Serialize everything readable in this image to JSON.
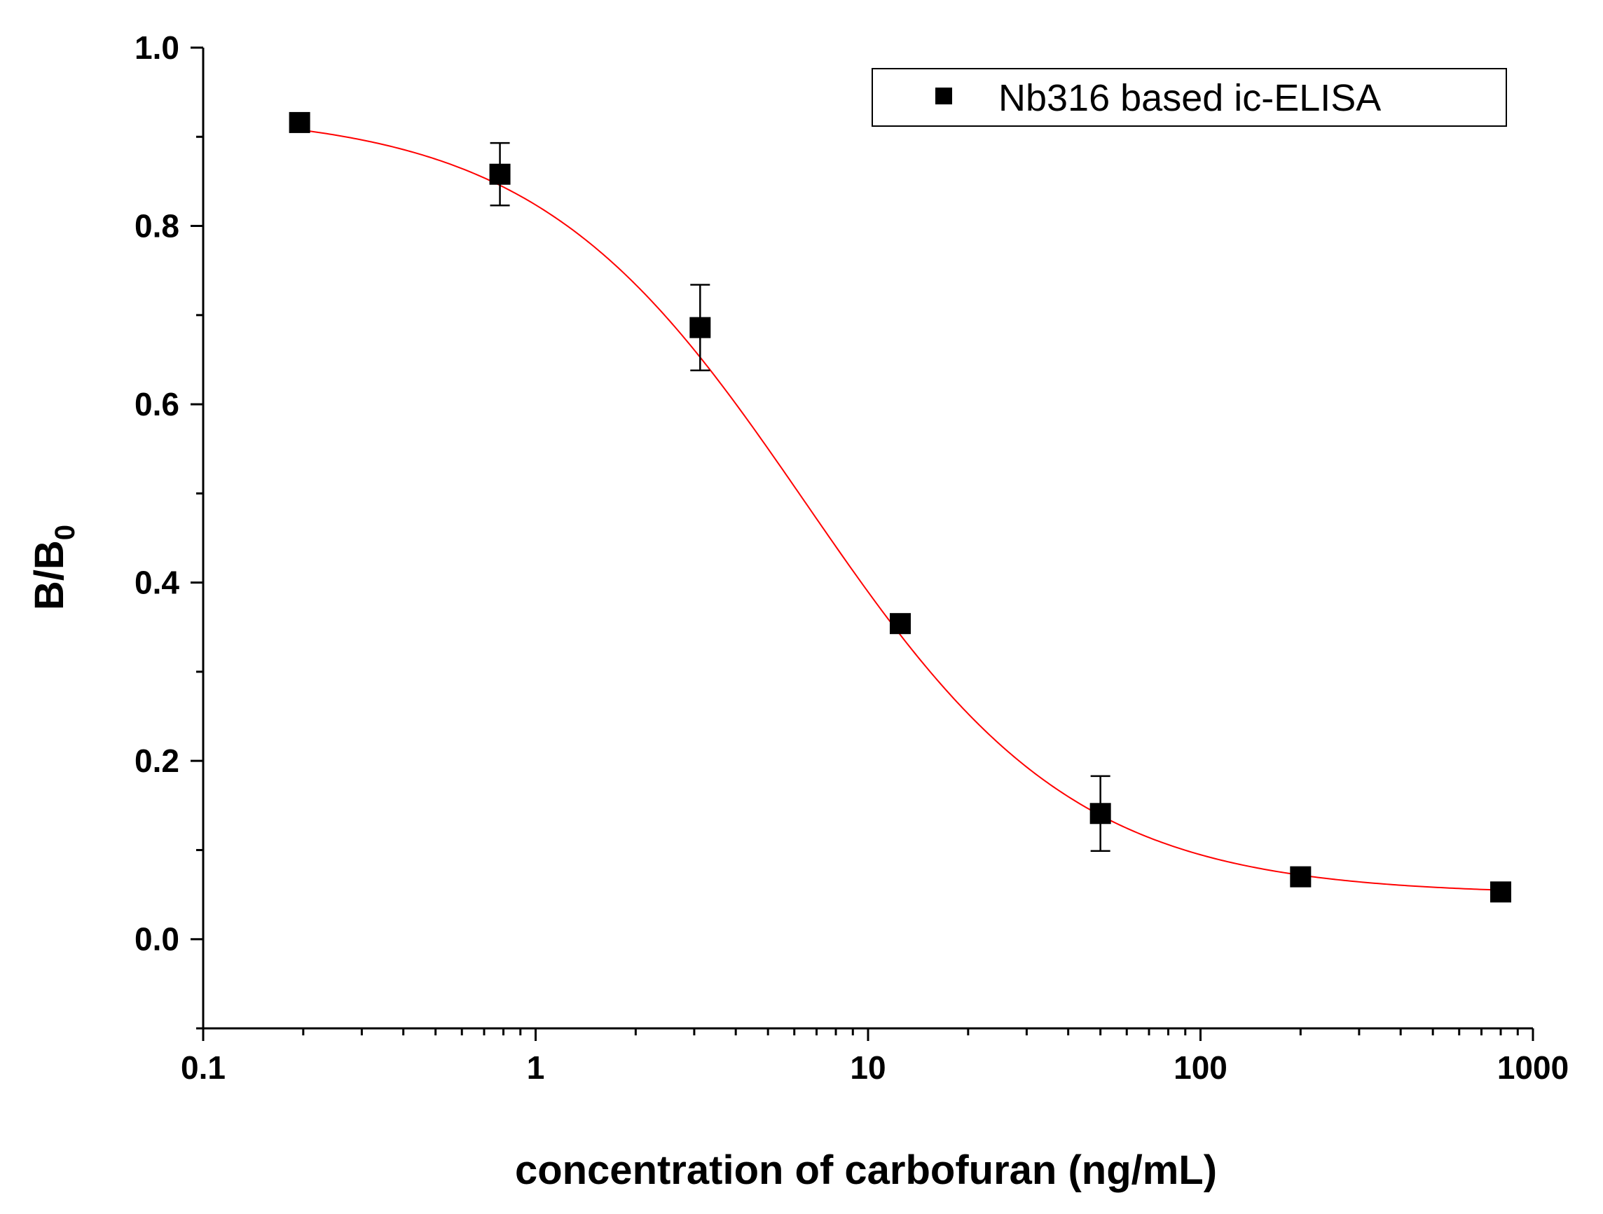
{
  "chart_data": {
    "type": "scatter",
    "title": "",
    "xlabel": "concentration of carbofuran (ng/mL)",
    "ylabel": "B/B",
    "ylabel_subscript": "0",
    "xscale": "log",
    "xlim": [
      0.1,
      1000
    ],
    "ylim": [
      -0.1,
      1.0
    ],
    "x_ticks": [
      0.1,
      1,
      10,
      100,
      1000
    ],
    "x_tick_labels": [
      "0.1",
      "1",
      "10",
      "100",
      "1000"
    ],
    "y_ticks": [
      0.0,
      0.2,
      0.4,
      0.6,
      0.8,
      1.0
    ],
    "y_tick_labels": [
      "0.0",
      "0.2",
      "0.4",
      "0.6",
      "0.8",
      "1.0"
    ],
    "grid": false,
    "legend": {
      "position": "top-right",
      "entries": [
        "Nb316 based ic-ELISA"
      ]
    },
    "series": [
      {
        "name": "Nb316 based ic-ELISA",
        "marker": "square",
        "color": "#000000",
        "x": [
          0.195,
          0.781,
          3.125,
          12.5,
          50,
          200,
          800
        ],
        "y": [
          0.916,
          0.858,
          0.686,
          0.354,
          0.141,
          0.07,
          0.053
        ],
        "error": [
          0.005,
          0.035,
          0.048,
          0.008,
          0.042,
          0.006,
          0.005
        ]
      }
    ],
    "fit": {
      "type": "four-parameter logistic",
      "color": "#ff0000",
      "top": 0.928,
      "bottom": 0.05,
      "ic50": 6.5,
      "slope": 1.07
    }
  }
}
